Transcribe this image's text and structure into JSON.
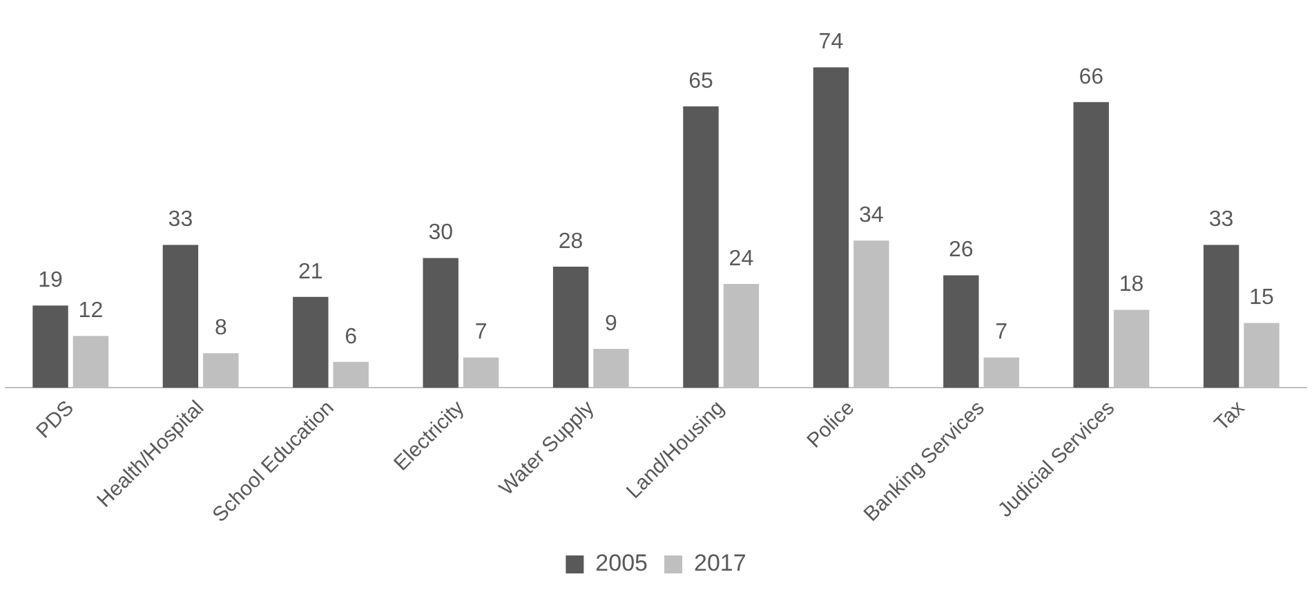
{
  "chart_data": {
    "type": "bar",
    "categories": [
      "PDS",
      "Health/Hospital",
      "School Education",
      "Electricity",
      "Water Supply",
      "Land/Housing",
      "Police",
      "Banking Services",
      "Judicial Services",
      "Tax"
    ],
    "series": [
      {
        "name": "2005",
        "color": "#595959",
        "values": [
          19,
          33,
          21,
          30,
          28,
          65,
          74,
          26,
          66,
          33
        ]
      },
      {
        "name": "2017",
        "color": "#bfbfbf",
        "values": [
          12,
          8,
          6,
          7,
          9,
          24,
          34,
          7,
          18,
          15
        ]
      }
    ],
    "data_labels": true,
    "legend": "bottom",
    "grid": false,
    "tick_labels": "x"
  }
}
